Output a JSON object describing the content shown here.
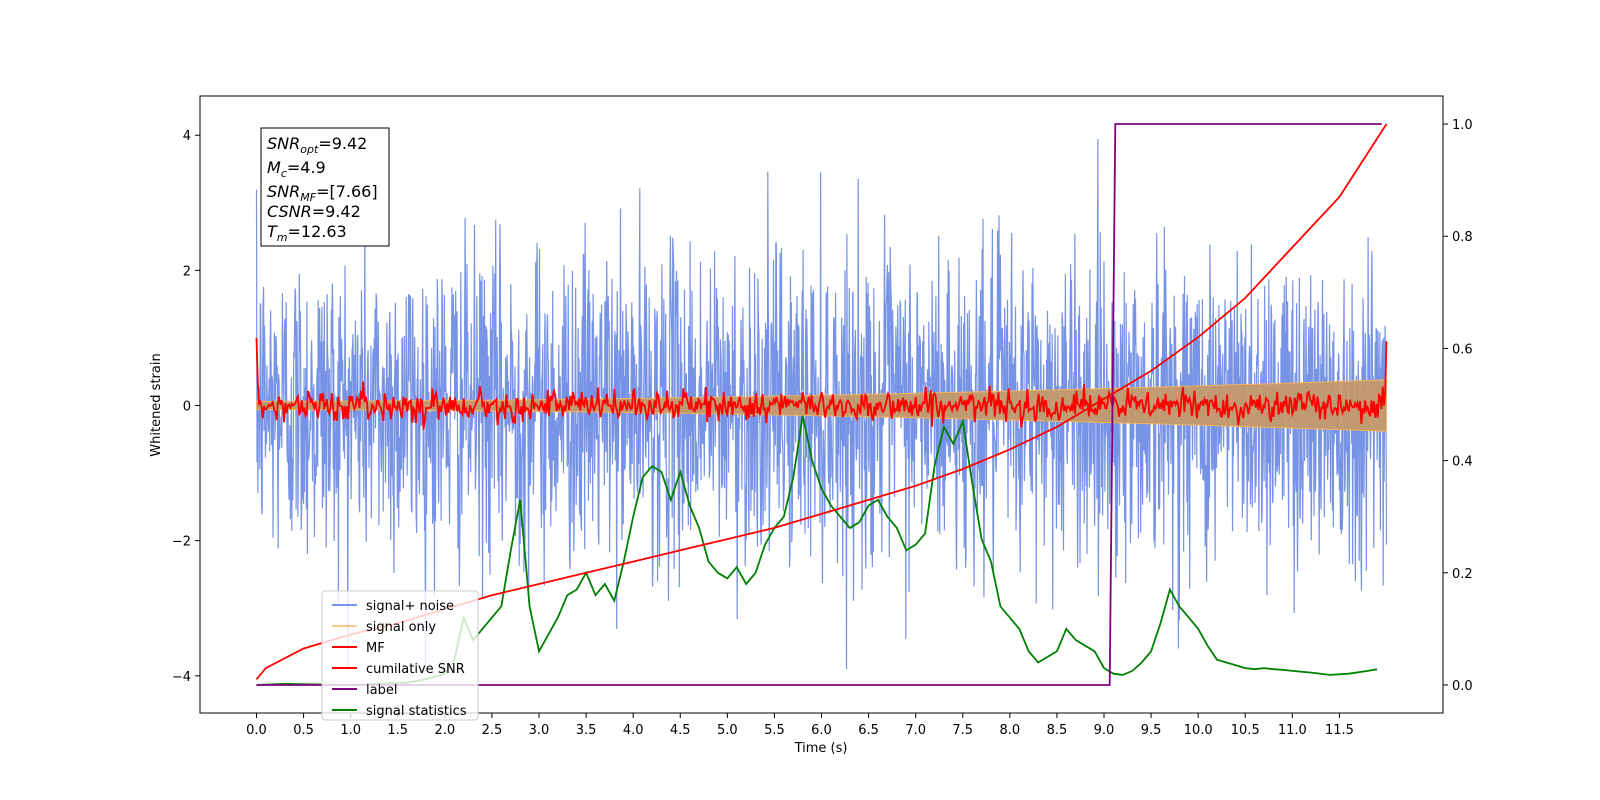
{
  "chart_data": {
    "type": "line",
    "xlabel": "Time (s)",
    "ylabel": "Whitened strain",
    "x_ticks": [
      "0.0",
      "0.5",
      "1.0",
      "1.5",
      "2.0",
      "2.5",
      "3.0",
      "3.5",
      "4.0",
      "4.5",
      "5.0",
      "5.5",
      "6.0",
      "6.5",
      "7.0",
      "7.5",
      "8.0",
      "8.5",
      "9.0",
      "9.5",
      "10.0",
      "10.5",
      "11.0",
      "11.5"
    ],
    "x_tick_values": [
      0,
      0.5,
      1,
      1.5,
      2,
      2.5,
      3,
      3.5,
      4,
      4.5,
      5,
      5.5,
      6,
      6.5,
      7,
      7.5,
      8,
      8.5,
      9,
      9.5,
      10,
      10.5,
      11,
      11.5
    ],
    "xlim": [
      -0.6,
      12.6
    ],
    "ylim_left": [
      -4.55,
      4.58
    ],
    "ylim_right": [
      -0.05,
      1.05
    ],
    "y_ticks_left": [
      "4",
      "2",
      "0",
      "−2",
      "−4"
    ],
    "y_tick_values_left": [
      4,
      2,
      0,
      -2,
      -4
    ],
    "y_ticks_right": [
      "1.0",
      "0.8",
      "0.6",
      "0.4",
      "0.2",
      "0.0"
    ],
    "y_tick_values_right": [
      1.0,
      0.8,
      0.6,
      0.4,
      0.2,
      0.0
    ],
    "grid": false,
    "legend_position": "lower-left",
    "annotation": {
      "snr_opt": "=9.42",
      "mc": "=4.9",
      "snr_mf": "=[7.66]",
      "csnr": "=9.42",
      "tm": "=12.63"
    },
    "series": [
      {
        "name": "signal+ noise",
        "axis": "left",
        "color": "#7793e6",
        "kind": "noise",
        "duration": 12.0,
        "amplitude_std": 1.15,
        "range": [
          -3.9,
          4.2
        ]
      },
      {
        "name": "signal only",
        "axis": "left",
        "color": "#f7b456",
        "kind": "chirp-envelope",
        "envelope_start": 0.06,
        "envelope_end": 0.38
      },
      {
        "name": "MF",
        "axis": "left",
        "color": "#ff0000",
        "kind": "matched-filter",
        "start_value": 1.0,
        "end_value": 0.95,
        "amplitude_std": 0.11
      },
      {
        "name": "cumilative SNR",
        "axis": "right",
        "color": "#ff0000",
        "x": [
          0,
          0.1,
          0.5,
          1,
          1.5,
          2,
          2.5,
          3,
          3.5,
          4,
          4.5,
          5,
          5.5,
          6,
          6.5,
          7,
          7.5,
          8,
          8.5,
          9,
          9.5,
          10,
          10.5,
          11,
          11.5,
          12
        ],
        "y": [
          0.01,
          0.03,
          0.065,
          0.09,
          0.11,
          0.135,
          0.16,
          0.18,
          0.2,
          0.22,
          0.24,
          0.26,
          0.28,
          0.305,
          0.33,
          0.355,
          0.385,
          0.42,
          0.46,
          0.51,
          0.56,
          0.62,
          0.69,
          0.78,
          0.87,
          1.0
        ]
      },
      {
        "name": "label",
        "axis": "right",
        "color": "#800080",
        "x": [
          0,
          9.06,
          9.12,
          11.95
        ],
        "y": [
          0,
          0,
          1,
          1
        ]
      },
      {
        "name": "signal statistics",
        "axis": "right",
        "color": "#008000",
        "x": [
          0,
          0.3,
          0.6,
          1.0,
          1.4,
          1.6,
          1.8,
          2.0,
          2.1,
          2.2,
          2.3,
          2.5,
          2.6,
          2.7,
          2.8,
          2.9,
          3.0,
          3.1,
          3.2,
          3.3,
          3.4,
          3.5,
          3.6,
          3.7,
          3.8,
          3.9,
          4.0,
          4.1,
          4.2,
          4.3,
          4.4,
          4.5,
          4.6,
          4.7,
          4.8,
          4.9,
          5.0,
          5.1,
          5.2,
          5.3,
          5.4,
          5.5,
          5.6,
          5.7,
          5.8,
          5.9,
          6.0,
          6.1,
          6.2,
          6.3,
          6.4,
          6.5,
          6.6,
          6.7,
          6.8,
          6.9,
          7.0,
          7.1,
          7.2,
          7.3,
          7.4,
          7.5,
          7.6,
          7.7,
          7.8,
          7.9,
          8.0,
          8.1,
          8.2,
          8.3,
          8.4,
          8.5,
          8.6,
          8.7,
          8.8,
          8.9,
          9.0,
          9.1,
          9.2,
          9.3,
          9.4,
          9.5,
          9.6,
          9.7,
          9.8,
          9.9,
          10.0,
          10.1,
          10.2,
          10.3,
          10.4,
          10.5,
          10.6,
          10.7,
          10.8,
          10.9,
          11.0,
          11.2,
          11.4,
          11.6,
          11.8,
          11.9
        ],
        "y": [
          0.0,
          0.002,
          0.001,
          0.0,
          0.003,
          0.004,
          0.01,
          0.02,
          0.045,
          0.12,
          0.08,
          0.12,
          0.14,
          0.24,
          0.33,
          0.14,
          0.06,
          0.09,
          0.12,
          0.16,
          0.17,
          0.2,
          0.16,
          0.18,
          0.15,
          0.22,
          0.3,
          0.37,
          0.39,
          0.38,
          0.33,
          0.38,
          0.32,
          0.28,
          0.22,
          0.2,
          0.19,
          0.21,
          0.18,
          0.2,
          0.25,
          0.28,
          0.3,
          0.37,
          0.48,
          0.4,
          0.35,
          0.32,
          0.3,
          0.28,
          0.29,
          0.32,
          0.33,
          0.3,
          0.28,
          0.24,
          0.25,
          0.27,
          0.39,
          0.46,
          0.43,
          0.47,
          0.36,
          0.26,
          0.22,
          0.14,
          0.12,
          0.1,
          0.06,
          0.04,
          0.05,
          0.06,
          0.1,
          0.08,
          0.07,
          0.06,
          0.03,
          0.02,
          0.018,
          0.025,
          0.04,
          0.06,
          0.11,
          0.17,
          0.14,
          0.12,
          0.1,
          0.07,
          0.045,
          0.04,
          0.035,
          0.03,
          0.028,
          0.03,
          0.028,
          0.027,
          0.025,
          0.022,
          0.018,
          0.02,
          0.025,
          0.028
        ]
      }
    ]
  }
}
